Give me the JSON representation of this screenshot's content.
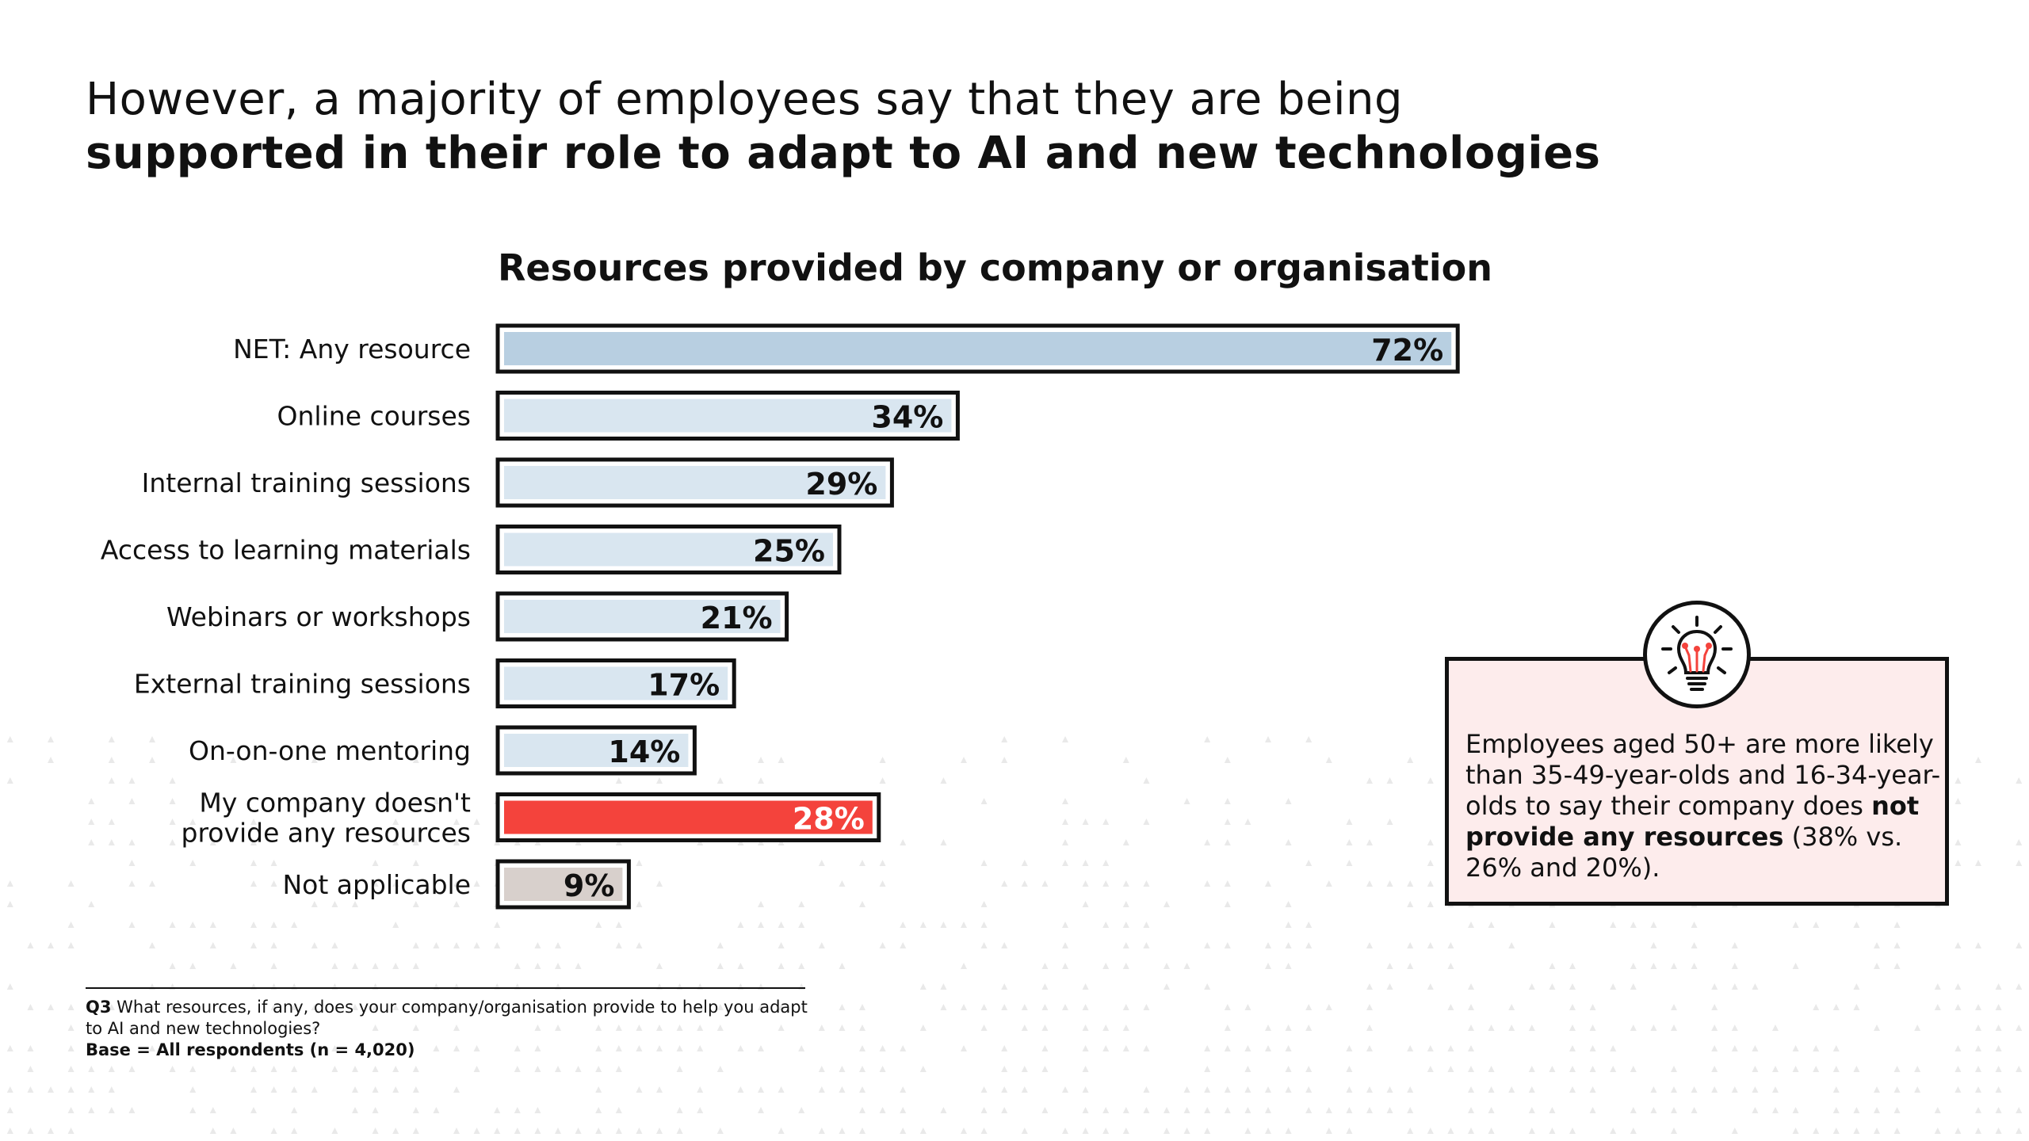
{
  "headline": {
    "line1": "However, a majority of employees say that they are being",
    "line2": "supported in their role to adapt to AI and new technologies"
  },
  "chart_data": {
    "type": "bar",
    "orientation": "horizontal",
    "title": "Resources provided by company or organisation",
    "categories": [
      [
        "NET: Any resource"
      ],
      [
        "Online courses"
      ],
      [
        "Internal training sessions"
      ],
      [
        "Access to learning materials"
      ],
      [
        "Webinars or workshops"
      ],
      [
        "External training sessions"
      ],
      [
        "On-on-one mentoring"
      ],
      [
        "My company doesn't",
        "provide any resources"
      ],
      [
        "Not applicable"
      ]
    ],
    "values": [
      72,
      34,
      29,
      25,
      21,
      17,
      14,
      28,
      9
    ],
    "value_labels": [
      "72%",
      "34%",
      "29%",
      "25%",
      "21%",
      "17%",
      "14%",
      "28%",
      "9%"
    ],
    "bar_colors": [
      "#b8cfe1",
      "#d9e6f0",
      "#d9e6f0",
      "#d9e6f0",
      "#d9e6f0",
      "#d9e6f0",
      "#d9e6f0",
      "#f4433c",
      "#d8d0cc"
    ],
    "label_colors": [
      "#111111",
      "#111111",
      "#111111",
      "#111111",
      "#111111",
      "#111111",
      "#111111",
      "#ffffff",
      "#111111"
    ],
    "unit": "%",
    "xlim": [
      0,
      100
    ],
    "xlabel": "",
    "ylabel": ""
  },
  "callout": {
    "icon": "lightbulb-icon",
    "text_before": "Employees aged 50+ are more likely than 35-49-year-olds and 16-34-year-olds to say their company does ",
    "text_bold": "not provide any resources",
    "text_after": " (38% vs. 26% and 20%)."
  },
  "footnote": {
    "question_label": "Q3",
    "question_text": " What resources, if any, does your company/organisation provide to help you adapt to AI and new technologies?",
    "base": "Base = All respondents (n = 4,020)"
  },
  "colors": {
    "outline": "#111111",
    "callout_background": "#fdecec",
    "accent_red": "#f4433c"
  }
}
